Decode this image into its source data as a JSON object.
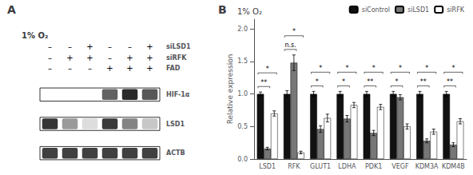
{
  "chart_data": [
    {
      "type": "heatmap",
      "title": "A",
      "subtitle": "1% O₂",
      "categories": [
        null,
        null,
        null,
        null,
        null,
        null
      ],
      "conditions": [
        {
          "name": "siLSD1",
          "values": [
            "–",
            "–",
            "+",
            "–",
            "–",
            "+"
          ]
        },
        {
          "name": "siRFK",
          "values": [
            "–",
            "+",
            "+",
            "–",
            "+",
            "+"
          ]
        },
        {
          "name": "FAD",
          "values": [
            "–",
            "–",
            "–",
            "+",
            "+",
            "+"
          ]
        }
      ],
      "series": [
        {
          "name": "HIF-1α",
          "values": [
            0,
            0,
            0,
            0.7,
            0.95,
            0.75
          ]
        },
        {
          "name": "LSD1",
          "values": [
            0.9,
            0.45,
            0.15,
            0.88,
            0.55,
            0.25
          ]
        },
        {
          "name": "ACTB",
          "values": [
            0.85,
            0.85,
            0.85,
            0.85,
            0.85,
            0.85
          ]
        }
      ]
    },
    {
      "type": "bar",
      "title": "B",
      "subtitle": "1% O₂",
      "ylabel": "Relative expression",
      "categories": [
        "LSD1",
        "RFK",
        "GLUT1",
        "LDHA",
        "PDK1",
        "VEGF",
        "KDM3A",
        "KDM4B"
      ],
      "series": [
        {
          "name": "siControl",
          "color": "#111111",
          "values": [
            1.0,
            1.0,
            1.0,
            1.0,
            1.0,
            1.0,
            1.0,
            1.0
          ],
          "errors": [
            0.03,
            0.05,
            0.04,
            0.04,
            0.04,
            0.04,
            0.04,
            0.04
          ]
        },
        {
          "name": "siLSD1",
          "color": "#777777",
          "values": [
            0.16,
            1.48,
            0.46,
            0.62,
            0.4,
            0.95,
            0.28,
            0.22
          ],
          "errors": [
            0.02,
            0.12,
            0.05,
            0.05,
            0.04,
            0.04,
            0.03,
            0.03
          ]
        },
        {
          "name": "siRFK",
          "color": "#ffffff",
          "values": [
            0.7,
            0.1,
            0.63,
            0.83,
            0.8,
            0.5,
            0.42,
            0.58
          ],
          "errors": [
            0.04,
            0.02,
            0.06,
            0.04,
            0.04,
            0.04,
            0.04,
            0.04
          ]
        }
      ],
      "significance": [
        {
          "pair": [
            "siControl",
            "siLSD1"
          ],
          "labels": [
            "**",
            "n.s.",
            "*",
            "*",
            "**",
            "*",
            "**",
            "**"
          ]
        },
        {
          "pair": [
            "siControl",
            "siRFK"
          ],
          "labels": [
            "*",
            "*",
            "*",
            "*",
            "*",
            "*",
            "*",
            "*"
          ]
        }
      ],
      "ylim": [
        0.0,
        2.15
      ],
      "yticks": [
        {
          "value": 0,
          "label": "0.0"
        },
        0.5,
        {
          "value": 1,
          "label": "1.0"
        },
        1.5,
        {
          "value": 2,
          "label": "2.0"
        }
      ],
      "grid": false,
      "legend": "upper right"
    }
  ]
}
